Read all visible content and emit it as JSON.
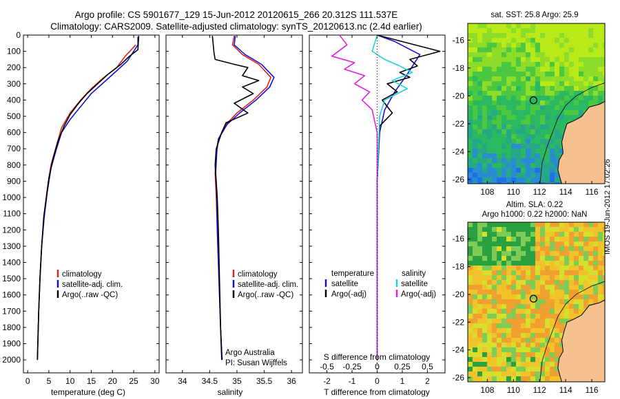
{
  "header": {
    "line1": "Argo profile: CS 5901677_129 15-Jun-2012 20120615_266 20.312S 111.537E",
    "line2": "Climatology: CARS2009. Satellite-adjusted climatology: synTS_20120613.nc (2.4d earlier)"
  },
  "colors": {
    "climatology": "#e02020",
    "satellite": "#1010d0",
    "argo": "#000000",
    "sat_salinity": "#20d0e0",
    "argo_salinity": "#e020e0",
    "land": "#f5c28f"
  },
  "chart_data": [
    {
      "type": "line",
      "id": "temperature",
      "xlabel": "temperature (deg C)",
      "ylabel": "",
      "xlim": [
        -1,
        31
      ],
      "ylim": [
        2080,
        0
      ],
      "xticks": [
        "0",
        "5",
        "10",
        "15",
        "20",
        "25",
        "30"
      ],
      "yticks": [
        "0",
        "100",
        "200",
        "300",
        "400",
        "500",
        "600",
        "700",
        "800",
        "900",
        "1000",
        "1100",
        "1200",
        "1300",
        "1400",
        "1500",
        "1600",
        "1700",
        "1800",
        "1900",
        "2000"
      ],
      "legend": [
        "climatology",
        "satellite-adj. clim.",
        "Argo(..raw -QC)"
      ],
      "series": [
        {
          "name": "climatology",
          "x": [
            25.5,
            24.8,
            23,
            21,
            18,
            15,
            12.5,
            10,
            8,
            6.8,
            5.5,
            4.6,
            3.9,
            3.3,
            2.9,
            2.6,
            2.4,
            2.3
          ],
          "y": [
            60,
            80,
            130,
            200,
            260,
            330,
            400,
            480,
            570,
            680,
            800,
            950,
            1100,
            1300,
            1500,
            1700,
            1900,
            2000
          ]
        },
        {
          "name": "satellite-adj. clim.",
          "x": [
            26,
            26,
            25,
            23.5,
            21,
            18,
            15,
            12.5,
            10,
            8,
            6.8,
            5.5,
            4.6,
            3.9,
            3.3,
            2.9,
            2.6,
            2.4,
            2.3
          ],
          "y": [
            10,
            60,
            100,
            160,
            220,
            290,
            360,
            440,
            520,
            600,
            700,
            820,
            970,
            1120,
            1300,
            1500,
            1700,
            1900,
            2000
          ]
        },
        {
          "name": "Argo(..raw -QC)",
          "x": [
            26.2,
            26,
            24,
            22,
            19,
            16.5,
            14,
            12,
            10,
            8.6,
            7.2,
            6,
            5,
            4.5,
            3.8,
            3.3,
            2.9,
            2.6,
            2.4,
            2.3
          ],
          "y": [
            5,
            90,
            130,
            180,
            240,
            300,
            360,
            420,
            490,
            560,
            650,
            760,
            880,
            980,
            1120,
            1300,
            1500,
            1700,
            1900,
            2000
          ]
        }
      ]
    },
    {
      "type": "line",
      "id": "salinity",
      "xlabel": "salinity",
      "xlim": [
        33.7,
        36.2
      ],
      "ylim": [
        2080,
        0
      ],
      "xticks": [
        "34",
        "34.5",
        "35",
        "35.5",
        "36"
      ],
      "legend": [
        "climatology",
        "satellite-adj. clim.",
        "Argo(..raw -QC)"
      ],
      "annotation": [
        "Argo Australia",
        "PI: Susan Wijffels"
      ],
      "series": [
        {
          "name": "climatology",
          "x": [
            34.95,
            34.92,
            35.1,
            35.4,
            35.62,
            35.55,
            35.3,
            35.0,
            34.8,
            34.66,
            34.62,
            34.6,
            34.62,
            34.64,
            34.66,
            34.68,
            34.7,
            34.72,
            34.72
          ],
          "y": [
            5,
            60,
            120,
            180,
            260,
            320,
            400,
            480,
            550,
            640,
            720,
            850,
            1000,
            1200,
            1400,
            1600,
            1800,
            1950,
            2000
          ]
        },
        {
          "name": "satellite-adj. clim.",
          "x": [
            34.97,
            34.95,
            35.15,
            35.45,
            35.68,
            35.6,
            35.35,
            35.05,
            34.82,
            34.66,
            34.63,
            34.61,
            34.63,
            34.64,
            34.66,
            34.68,
            34.7,
            34.72,
            34.73
          ],
          "y": [
            5,
            60,
            120,
            180,
            260,
            320,
            400,
            480,
            550,
            640,
            720,
            850,
            1000,
            1200,
            1400,
            1600,
            1800,
            1950,
            2000
          ]
        },
        {
          "name": "Argo(..raw -QC)",
          "x": [
            34.55,
            34.58,
            34.6,
            34.95,
            35.2,
            35.1,
            35.4,
            35.1,
            35.3,
            34.95,
            35.2,
            34.8,
            34.72,
            34.62,
            34.6,
            34.64,
            34.66,
            34.68,
            34.7,
            34.72
          ],
          "y": [
            5,
            110,
            150,
            180,
            200,
            250,
            280,
            320,
            360,
            420,
            480,
            540,
            600,
            700,
            800,
            1000,
            1200,
            1500,
            1800,
            2000
          ]
        }
      ]
    },
    {
      "type": "line",
      "id": "difference",
      "xlabel": "T difference from climatology",
      "xlabel_top": "S difference from climatology",
      "xlim": [
        -2.7,
        2.7
      ],
      "ylim": [
        2080,
        0
      ],
      "xticks": [
        "-2",
        "-1",
        "0",
        "1",
        "2"
      ],
      "s_ticks": [
        "-0.5",
        "-0.25",
        "0",
        "0.25",
        "0.5"
      ],
      "legend_temperature": {
        "title": "temperature",
        "items": [
          "satellite",
          "Argo(-adj)"
        ]
      },
      "legend_salinity": {
        "title": "salinity",
        "items": [
          "satellite",
          "Argo(-adj)"
        ]
      },
      "series": [
        {
          "name": "temperature satellite",
          "x": [
            0,
            0.7,
            1.7,
            1.2,
            0.7,
            0.3,
            0.1,
            0,
            0,
            0
          ],
          "y": [
            0,
            40,
            120,
            240,
            350,
            460,
            600,
            900,
            1500,
            2000
          ]
        },
        {
          "name": "temperature Argo(-adj)",
          "x": [
            0,
            2.5,
            1.3,
            1.6,
            0.9,
            1.3,
            0.4,
            0.8,
            0.2,
            0.6,
            0.1,
            0,
            0
          ],
          "y": [
            0,
            100,
            150,
            190,
            230,
            260,
            300,
            350,
            400,
            480,
            560,
            900,
            2000
          ]
        },
        {
          "name": "salinity satellite",
          "x": [
            0,
            -0.2,
            0.3,
            0.9,
            1.4,
            0.6,
            1.2,
            0.3,
            0.1,
            0,
            0
          ],
          "y": [
            0,
            100,
            150,
            190,
            230,
            280,
            330,
            400,
            500,
            900,
            2000
          ]
        },
        {
          "name": "salinity Argo(-adj)",
          "x": [
            -1.5,
            -1.2,
            -1.8,
            -0.9,
            -1.3,
            -0.5,
            -0.9,
            -0.3,
            -0.6,
            -0.2,
            0,
            0
          ],
          "y": [
            0,
            60,
            130,
            170,
            210,
            250,
            300,
            350,
            400,
            460,
            600,
            2000
          ]
        }
      ]
    },
    {
      "type": "heatmap",
      "id": "sst_map",
      "title": "sat. SST: 25.8  Argo: 25.9",
      "xlim": [
        106.5,
        117
      ],
      "ylim": [
        -26.3,
        -14.8
      ],
      "xticks": [
        "108",
        "110",
        "112",
        "114",
        "116"
      ],
      "yticks": [
        "-16",
        "-18",
        "-20",
        "-22",
        "-24",
        "-26"
      ],
      "marker": {
        "lon": 111.537,
        "lat": -20.312
      }
    },
    {
      "type": "heatmap",
      "id": "sla_map",
      "title_line1": "Altim. SLA: 0.22",
      "title_line2": "Argo h1000: 0.22  h2000: NaN",
      "xlim": [
        106.5,
        117
      ],
      "ylim": [
        -26.3,
        -14.8
      ],
      "xticks": [
        "108",
        "110",
        "112",
        "114",
        "116"
      ],
      "yticks": [
        "-16",
        "-18",
        "-20",
        "-22",
        "-24",
        "-26"
      ],
      "marker": {
        "lon": 111.537,
        "lat": -20.312
      }
    }
  ],
  "footer": {
    "watermark": "IMOS 19-Jun-2012 17:02:26"
  }
}
